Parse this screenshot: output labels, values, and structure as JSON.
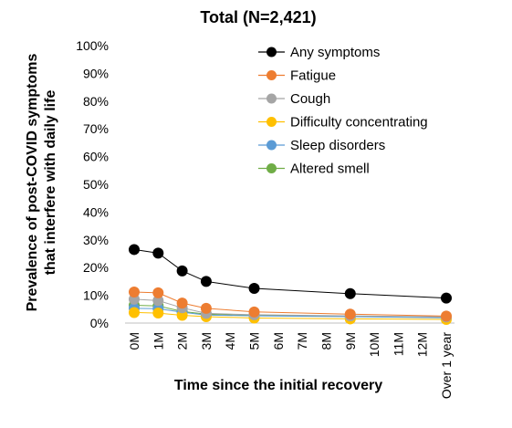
{
  "chart_data": {
    "type": "line",
    "title": "Total (N=2,421)",
    "xlabel": "Time since the initial recovery",
    "ylabel_lines": [
      "Prevalence of post-COVID symptoms",
      "that interfere with daily life"
    ],
    "categories": [
      "0M",
      "1M",
      "2M",
      "3M",
      "4M",
      "5M",
      "6M",
      "7M",
      "8M",
      "9M",
      "10M",
      "11M",
      "12M",
      "Over 1 year"
    ],
    "y_ticks": [
      "0%",
      "10%",
      "20%",
      "30%",
      "40%",
      "50%",
      "60%",
      "70%",
      "80%",
      "90%",
      "100%"
    ],
    "ylim": [
      0,
      100
    ],
    "grid": false,
    "legend_position": "top-right",
    "series": [
      {
        "name": "Any symptoms",
        "color": "#000000",
        "points": [
          [
            0,
            26.5
          ],
          [
            1,
            25.2
          ],
          [
            2,
            18.8
          ],
          [
            3,
            15
          ],
          [
            5,
            12.5
          ],
          [
            9,
            10.6
          ],
          [
            13,
            9
          ]
        ]
      },
      {
        "name": "Fatigue",
        "color": "#ED7D31",
        "points": [
          [
            0,
            11.2
          ],
          [
            1,
            10.9
          ],
          [
            2,
            7.2
          ],
          [
            3,
            5.3
          ],
          [
            5,
            4
          ],
          [
            9,
            3.2
          ],
          [
            13,
            2.5
          ]
        ]
      },
      {
        "name": "Cough",
        "color": "#A5A5A5",
        "points": [
          [
            0,
            8.6
          ],
          [
            1,
            8.1
          ],
          [
            2,
            5.5
          ],
          [
            3,
            3.5
          ],
          [
            5,
            3
          ],
          [
            9,
            2.6
          ],
          [
            13,
            2.2
          ]
        ]
      },
      {
        "name": "Difficulty concentrating",
        "color": "#FFC000",
        "points": [
          [
            0,
            3.8
          ],
          [
            1,
            3.6
          ],
          [
            2,
            2.8
          ],
          [
            3,
            2.3
          ],
          [
            5,
            1.8
          ],
          [
            9,
            1.5
          ],
          [
            13,
            1.3
          ]
        ]
      },
      {
        "name": "Sleep disorders",
        "color": "#5B9BD5",
        "points": [
          [
            0,
            5.3
          ],
          [
            1,
            5.2
          ],
          [
            2,
            3.9
          ],
          [
            3,
            2.9
          ],
          [
            5,
            2.6
          ],
          [
            9,
            2.3
          ],
          [
            13,
            1.9
          ]
        ]
      },
      {
        "name": "Altered smell",
        "color": "#70AD47",
        "points": [
          [
            0,
            6.4
          ],
          [
            1,
            6.2
          ],
          [
            2,
            4.2
          ],
          [
            3,
            3.2
          ],
          [
            5,
            2.7
          ],
          [
            9,
            2.4
          ],
          [
            13,
            2
          ]
        ]
      }
    ]
  }
}
